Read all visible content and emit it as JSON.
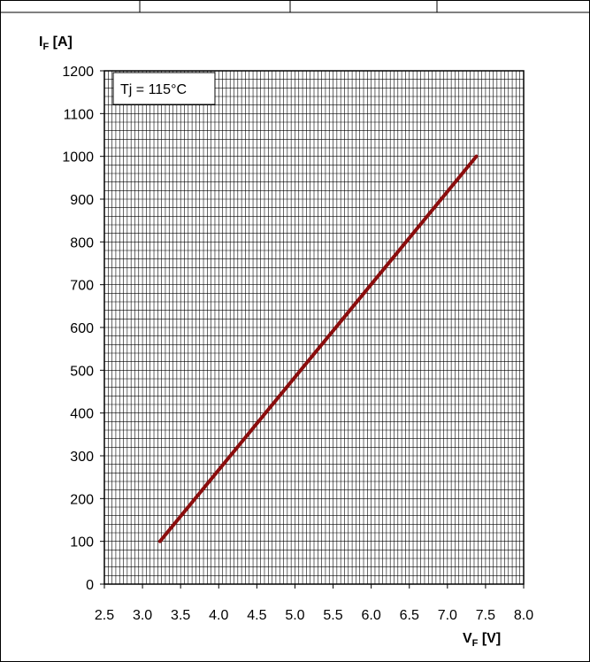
{
  "chart_data": {
    "type": "line",
    "ylabel": {
      "main": "I",
      "sub": "F",
      "unit": " [A]"
    },
    "xlabel": {
      "main": "V",
      "sub": "F",
      "unit": " [V]"
    },
    "xlim": [
      2.5,
      8.0
    ],
    "ylim": [
      0,
      1200
    ],
    "x_ticks": [
      "2.5",
      "3.0",
      "3.5",
      "4.0",
      "4.5",
      "5.0",
      "5.5",
      "6.0",
      "6.5",
      "7.0",
      "7.5",
      "8.0"
    ],
    "y_ticks": [
      "0",
      "100",
      "200",
      "300",
      "400",
      "500",
      "600",
      "700",
      "800",
      "900",
      "1000",
      "1100",
      "1200"
    ],
    "grid": true,
    "annotation": "Tj = 115°C",
    "series": [
      {
        "color": "#8b0d0d",
        "x": [
          3.23,
          7.38
        ],
        "y": [
          100,
          1000
        ]
      }
    ]
  }
}
